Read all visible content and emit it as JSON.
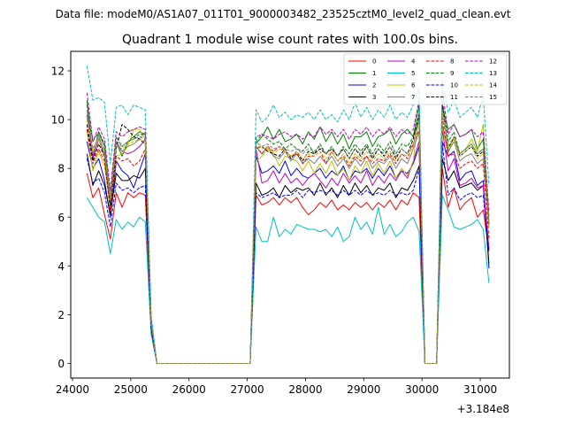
{
  "suptitle": "Data file: modeM0/AS1A07_011T01_9000003482_23525cztM0_level2_quad_clean.evt",
  "chart_data": {
    "type": "line",
    "title": "Quadrant 1 module wise count rates with 100.0s bins.",
    "xlabel": "",
    "ylabel": "",
    "x_offset_label": "+3.184e8",
    "xlim": [
      23970,
      31500
    ],
    "ylim": [
      -0.6,
      12.8
    ],
    "xticks": [
      24000,
      25000,
      26000,
      27000,
      28000,
      29000,
      30000,
      31000
    ],
    "xtick_labels": [
      "24000",
      "25000",
      "26000",
      "27000",
      "28000",
      "29000",
      "30000",
      "31000"
    ],
    "yticks": [
      0,
      2,
      4,
      6,
      8,
      10,
      12
    ],
    "ytick_labels": [
      "0",
      "2",
      "4",
      "6",
      "8",
      "10",
      "12"
    ],
    "legend_position": "top-right",
    "x": [
      24250,
      24350,
      24450,
      24550,
      24650,
      24750,
      24850,
      24950,
      25050,
      25150,
      25250,
      25350,
      25450,
      25550,
      25650,
      25750,
      25850,
      25950,
      26050,
      26150,
      26250,
      26350,
      26450,
      26550,
      26650,
      26750,
      26850,
      26950,
      27050,
      27150,
      27250,
      27350,
      27450,
      27550,
      27650,
      27750,
      27850,
      27950,
      28050,
      28150,
      28250,
      28350,
      28450,
      28550,
      28650,
      28750,
      28850,
      28950,
      29050,
      29150,
      29250,
      29350,
      29450,
      29550,
      29650,
      29750,
      29850,
      29950,
      30050,
      30150,
      30250,
      30350,
      30450,
      30550,
      30650,
      30750,
      30850,
      30950,
      31050,
      31150
    ],
    "series": [
      {
        "name": "0",
        "color": "#ff0000",
        "dash": "solid",
        "values": [
          7.8,
          6.8,
          7.2,
          6.1,
          5.1,
          7.0,
          6.4,
          7.0,
          6.8,
          7.0,
          6.9,
          1.4,
          0,
          0,
          0,
          0,
          0,
          0,
          0,
          0,
          0,
          0,
          0,
          0,
          0,
          0,
          0,
          0,
          0,
          6.9,
          6.5,
          6.6,
          6.8,
          6.5,
          6.8,
          6.6,
          6.8,
          6.4,
          6.1,
          6.3,
          6.6,
          6.4,
          6.7,
          6.3,
          6.5,
          6.3,
          6.6,
          6.4,
          6.6,
          6.3,
          6.6,
          6.4,
          6.7,
          6.3,
          6.7,
          6.5,
          7.0,
          6.8,
          0,
          0,
          0,
          8.0,
          6.4,
          7.2,
          6.3,
          6.6,
          6.8,
          6.0,
          6.3,
          4.6
        ]
      },
      {
        "name": "1",
        "color": "#008000",
        "dash": "solid",
        "values": [
          10.8,
          8.5,
          9.5,
          8.9,
          6.7,
          9.1,
          8.5,
          9.1,
          9.3,
          9.5,
          9.4,
          1.7,
          0,
          0,
          0,
          0,
          0,
          0,
          0,
          0,
          0,
          0,
          0,
          0,
          0,
          0,
          0,
          0,
          0,
          9.0,
          9.3,
          9.7,
          9.2,
          9.6,
          9.1,
          9.2,
          9.4,
          9.0,
          9.5,
          9.2,
          9.7,
          9.1,
          9.5,
          9.0,
          9.4,
          8.8,
          9.3,
          9.3,
          9.5,
          8.9,
          9.3,
          9.4,
          9.6,
          9.0,
          9.4,
          9.6,
          9.3,
          10.6,
          0,
          0,
          0,
          10.5,
          9.6,
          9.8,
          9.3,
          9.4,
          9.6,
          8.8,
          9.2,
          6.0
        ]
      },
      {
        "name": "2",
        "color": "#0000ff",
        "dash": "solid",
        "values": [
          9.1,
          8.0,
          8.4,
          7.5,
          6.0,
          8.3,
          7.9,
          7.7,
          7.2,
          7.9,
          8.6,
          1.5,
          0,
          0,
          0,
          0,
          0,
          0,
          0,
          0,
          0,
          0,
          0,
          0,
          0,
          0,
          0,
          0,
          0,
          8.5,
          7.8,
          7.9,
          8.1,
          7.8,
          8.3,
          7.7,
          8.0,
          7.7,
          7.6,
          7.8,
          8.0,
          7.6,
          7.9,
          7.7,
          8.1,
          7.5,
          7.9,
          7.8,
          8.0,
          7.6,
          8.0,
          7.7,
          8.1,
          7.6,
          7.9,
          7.8,
          8.2,
          8.9,
          0,
          0,
          0,
          9.1,
          8.5,
          8.7,
          7.5,
          7.8,
          7.9,
          7.3,
          7.5,
          3.9
        ]
      },
      {
        "name": "3",
        "color": "#000000",
        "dash": "solid",
        "values": [
          8.6,
          7.3,
          7.9,
          7.3,
          6.1,
          7.8,
          7.5,
          7.5,
          7.7,
          7.6,
          8.0,
          1.4,
          0,
          0,
          0,
          0,
          0,
          0,
          0,
          0,
          0,
          0,
          0,
          0,
          0,
          0,
          0,
          0,
          0,
          7.4,
          6.9,
          7.0,
          7.2,
          6.8,
          7.3,
          7.0,
          7.2,
          7.1,
          7.2,
          6.9,
          7.4,
          6.9,
          7.2,
          6.8,
          7.3,
          6.9,
          7.4,
          7.0,
          7.3,
          6.9,
          7.2,
          7.1,
          7.4,
          6.8,
          7.2,
          7.1,
          7.5,
          8.1,
          0,
          0,
          0,
          8.4,
          7.5,
          7.9,
          7.2,
          7.3,
          7.4,
          7.1,
          7.3,
          4.1
        ]
      },
      {
        "name": "4",
        "color": "#bf00bf",
        "dash": "solid",
        "values": [
          10.2,
          8.4,
          9.2,
          8.5,
          6.3,
          9.1,
          8.7,
          8.6,
          8.7,
          8.9,
          9.2,
          1.6,
          0,
          0,
          0,
          0,
          0,
          0,
          0,
          0,
          0,
          0,
          0,
          0,
          0,
          0,
          0,
          0,
          0,
          8.8,
          7.4,
          7.5,
          7.9,
          7.4,
          7.8,
          7.4,
          7.6,
          7.3,
          7.6,
          7.8,
          7.5,
          7.2,
          7.6,
          7.3,
          7.8,
          7.4,
          7.7,
          7.4,
          7.9,
          7.3,
          7.7,
          7.4,
          7.8,
          7.5,
          7.9,
          7.6,
          8.3,
          9.1,
          0,
          0,
          0,
          9.6,
          7.9,
          8.4,
          7.3,
          7.4,
          7.6,
          7.2,
          7.3,
          4.7
        ]
      },
      {
        "name": "5",
        "color": "#00bfbf",
        "dash": "solid",
        "values": [
          6.8,
          6.4,
          6.0,
          5.8,
          4.5,
          5.9,
          5.5,
          5.8,
          5.6,
          6.0,
          5.8,
          1.2,
          0,
          0,
          0,
          0,
          0,
          0,
          0,
          0,
          0,
          0,
          0,
          0,
          0,
          0,
          0,
          0,
          0,
          5.6,
          5.0,
          5.0,
          6.0,
          5.2,
          5.5,
          5.3,
          5.7,
          5.6,
          5.5,
          5.5,
          5.4,
          5.5,
          5.2,
          5.6,
          5.0,
          5.2,
          6.0,
          5.5,
          5.8,
          5.3,
          6.4,
          5.3,
          5.7,
          5.2,
          5.4,
          5.8,
          6.0,
          5.4,
          0,
          0,
          0,
          6.9,
          6.3,
          5.6,
          5.5,
          5.6,
          5.7,
          5.9,
          5.5,
          3.3
        ]
      },
      {
        "name": "6",
        "color": "#bfbf00",
        "dash": "solid",
        "values": [
          9.5,
          7.9,
          8.7,
          8.1,
          6.4,
          8.5,
          8.6,
          8.9,
          9.6,
          9.6,
          9.2,
          1.7,
          0,
          0,
          0,
          0,
          0,
          0,
          0,
          0,
          0,
          0,
          0,
          0,
          0,
          0,
          0,
          0,
          0,
          8.3,
          8.5,
          8.8,
          8.6,
          8.1,
          8.5,
          8.4,
          8.3,
          7.9,
          8.3,
          7.8,
          8.2,
          7.8,
          8.3,
          7.7,
          8.0,
          7.5,
          8.1,
          7.8,
          8.3,
          7.7,
          8.2,
          7.8,
          8.3,
          7.6,
          8.0,
          7.7,
          8.3,
          10.3,
          0,
          0,
          0,
          9.7,
          8.6,
          9.3,
          8.6,
          8.8,
          9.2,
          8.7,
          9.8,
          6.0
        ]
      },
      {
        "name": "7",
        "color": "#808080",
        "dash": "solid",
        "values": [
          10.4,
          8.6,
          9.4,
          8.6,
          6.6,
          9.0,
          8.7,
          8.9,
          9.0,
          9.2,
          9.5,
          1.7,
          0,
          0,
          0,
          0,
          0,
          0,
          0,
          0,
          0,
          0,
          0,
          0,
          0,
          0,
          0,
          0,
          0,
          8.9,
          8.6,
          8.9,
          8.5,
          8.4,
          8.7,
          8.3,
          8.6,
          8.2,
          8.4,
          8.2,
          8.5,
          8.2,
          8.5,
          8.1,
          8.4,
          8.0,
          8.4,
          8.1,
          8.5,
          8.0,
          8.3,
          8.2,
          8.5,
          8.0,
          8.4,
          8.2,
          8.8,
          9.5,
          0,
          0,
          0,
          9.8,
          8.7,
          9.1,
          8.3,
          8.5,
          8.6,
          8.2,
          8.4,
          5.6
        ]
      },
      {
        "name": "8",
        "color": "#ff0000",
        "dash": "dashed",
        "values": [
          9.6,
          8.2,
          8.8,
          8.3,
          6.3,
          8.5,
          8.3,
          8.4,
          8.1,
          8.3,
          8.8,
          1.5,
          0,
          0,
          0,
          0,
          0,
          0,
          0,
          0,
          0,
          0,
          0,
          0,
          0,
          0,
          0,
          0,
          0,
          8.9,
          8.6,
          8.9,
          8.7,
          8.9,
          8.7,
          8.5,
          8.6,
          8.2,
          8.5,
          8.5,
          8.7,
          8.2,
          8.7,
          8.3,
          8.5,
          8.1,
          8.5,
          8.3,
          8.5,
          8.2,
          8.4,
          8.3,
          8.6,
          8.2,
          8.6,
          8.4,
          9.0,
          9.6,
          0,
          0,
          0,
          10.1,
          8.5,
          8.6,
          8.0,
          8.2,
          8.3,
          8.0,
          8.2,
          5.1
        ]
      },
      {
        "name": "9",
        "color": "#008000",
        "dash": "dashed",
        "values": [
          10.6,
          9.1,
          9.5,
          9.0,
          6.8,
          9.3,
          8.9,
          9.1,
          9.2,
          9.4,
          9.4,
          1.8,
          0,
          0,
          0,
          0,
          0,
          0,
          0,
          0,
          0,
          0,
          0,
          0,
          0,
          0,
          0,
          0,
          0,
          9.1,
          9.4,
          9.2,
          9.0,
          9.1,
          8.8,
          9.0,
          8.8,
          8.7,
          9.0,
          8.6,
          9.0,
          8.6,
          8.9,
          8.5,
          8.9,
          8.6,
          9.0,
          8.7,
          9.0,
          8.6,
          9.0,
          8.7,
          9.1,
          8.6,
          9.0,
          8.9,
          9.3,
          10.0,
          0,
          0,
          0,
          10.8,
          9.1,
          9.5,
          8.6,
          8.8,
          9.0,
          8.6,
          8.8,
          5.8
        ]
      },
      {
        "name": "10",
        "color": "#0000ff",
        "dash": "dashed",
        "values": [
          8.4,
          7.4,
          7.6,
          7.0,
          5.6,
          7.4,
          7.1,
          7.2,
          7.0,
          7.2,
          7.3,
          1.4,
          0,
          0,
          0,
          0,
          0,
          0,
          0,
          0,
          0,
          0,
          0,
          0,
          0,
          0,
          0,
          0,
          0,
          7.0,
          6.8,
          6.9,
          7.0,
          6.8,
          6.9,
          6.9,
          7.1,
          6.8,
          7.1,
          7.0,
          7.1,
          7.0,
          7.1,
          6.9,
          7.1,
          6.9,
          7.1,
          6.9,
          7.1,
          6.9,
          7.0,
          6.9,
          7.1,
          6.9,
          7.0,
          6.9,
          7.1,
          8.0,
          0,
          0,
          0,
          9.0,
          6.9,
          7.2,
          6.7,
          6.9,
          7.0,
          6.8,
          6.9,
          4.6
        ]
      },
      {
        "name": "11",
        "color": "#000000",
        "dash": "dashed",
        "values": [
          9.8,
          8.3,
          9.0,
          8.5,
          6.5,
          8.8,
          9.8,
          9.6,
          9.3,
          9.2,
          9.0,
          1.7,
          0,
          0,
          0,
          0,
          0,
          0,
          0,
          0,
          0,
          0,
          0,
          0,
          0,
          0,
          0,
          0,
          0,
          8.8,
          8.9,
          8.7,
          8.6,
          8.5,
          8.8,
          8.4,
          8.7,
          8.3,
          8.7,
          8.6,
          8.8,
          8.6,
          8.8,
          8.5,
          8.8,
          8.4,
          8.8,
          8.5,
          8.9,
          8.4,
          8.8,
          8.5,
          8.9,
          8.4,
          8.8,
          8.6,
          9.2,
          10.2,
          0,
          0,
          0,
          10.6,
          8.8,
          9.3,
          8.5,
          8.7,
          8.9,
          8.5,
          8.7,
          5.7
        ]
      },
      {
        "name": "12",
        "color": "#bf00bf",
        "dash": "dashed",
        "values": [
          11.1,
          9.1,
          9.7,
          9.2,
          7.1,
          9.5,
          9.3,
          9.5,
          9.6,
          9.7,
          9.6,
          1.8,
          0,
          0,
          0,
          0,
          0,
          0,
          0,
          0,
          0,
          0,
          0,
          0,
          0,
          0,
          0,
          0,
          0,
          9.3,
          9.4,
          9.3,
          9.2,
          9.4,
          9.5,
          9.3,
          9.4,
          9.2,
          9.4,
          9.3,
          9.7,
          9.4,
          9.6,
          9.3,
          9.6,
          9.2,
          9.6,
          9.4,
          9.7,
          9.3,
          9.6,
          9.4,
          9.7,
          9.3,
          9.6,
          9.4,
          9.6,
          10.8,
          0,
          0,
          0,
          11.2,
          9.4,
          9.8,
          9.3,
          9.4,
          9.6,
          9.3,
          9.5,
          6.2
        ]
      },
      {
        "name": "13",
        "color": "#00bfbf",
        "dash": "dashed",
        "values": [
          12.2,
          10.8,
          10.9,
          10.7,
          8.2,
          10.5,
          10.6,
          10.2,
          10.6,
          10.5,
          10.4,
          2.0,
          0,
          0,
          0,
          0,
          0,
          0,
          0,
          0,
          0,
          0,
          0,
          0,
          0,
          0,
          0,
          0,
          0,
          10.4,
          9.9,
          10.1,
          10.6,
          10.1,
          10.3,
          10.0,
          10.2,
          10.1,
          10.3,
          10.0,
          10.4,
          10.0,
          10.2,
          9.9,
          10.4,
          10.0,
          10.7,
          10.1,
          10.5,
          10.0,
          10.4,
          10.1,
          10.6,
          10.0,
          10.3,
          10.1,
          10.6,
          11.3,
          0,
          0,
          0,
          11.6,
          10.3,
          10.8,
          10.1,
          10.3,
          10.5,
          10.1,
          11.0,
          7.3
        ]
      },
      {
        "name": "14",
        "color": "#bfbf00",
        "dash": "dashed",
        "values": [
          10.0,
          8.7,
          9.2,
          8.6,
          6.7,
          9.0,
          8.8,
          9.0,
          9.1,
          9.2,
          9.1,
          1.7,
          0,
          0,
          0,
          0,
          0,
          0,
          0,
          0,
          0,
          0,
          0,
          0,
          0,
          0,
          0,
          0,
          0,
          9.0,
          8.8,
          8.9,
          8.6,
          8.8,
          8.7,
          8.5,
          8.7,
          8.4,
          8.6,
          8.5,
          8.7,
          8.4,
          8.7,
          8.3,
          8.6,
          8.2,
          8.6,
          8.4,
          8.7,
          8.3,
          8.6,
          8.4,
          8.7,
          8.3,
          8.6,
          8.5,
          8.9,
          9.9,
          0,
          0,
          0,
          10.3,
          8.8,
          9.2,
          8.5,
          8.7,
          8.9,
          8.4,
          8.6,
          5.6
        ]
      },
      {
        "name": "15",
        "color": "#808080",
        "dash": "dashed",
        "values": [
          10.1,
          8.8,
          9.3,
          8.7,
          6.8,
          9.1,
          8.9,
          9.1,
          9.2,
          9.3,
          9.2,
          1.7,
          0,
          0,
          0,
          0,
          0,
          0,
          0,
          0,
          0,
          0,
          0,
          0,
          0,
          0,
          0,
          0,
          0,
          9.1,
          8.9,
          9.0,
          8.8,
          8.9,
          8.8,
          8.7,
          8.8,
          8.6,
          8.8,
          8.7,
          8.9,
          8.6,
          8.8,
          8.5,
          8.8,
          8.4,
          8.8,
          8.6,
          8.9,
          8.5,
          8.8,
          8.6,
          8.9,
          8.5,
          8.8,
          8.6,
          9.0,
          10.0,
          0,
          0,
          0,
          10.4,
          8.9,
          9.3,
          8.6,
          8.8,
          9.0,
          8.6,
          8.8,
          5.7
        ]
      }
    ]
  }
}
